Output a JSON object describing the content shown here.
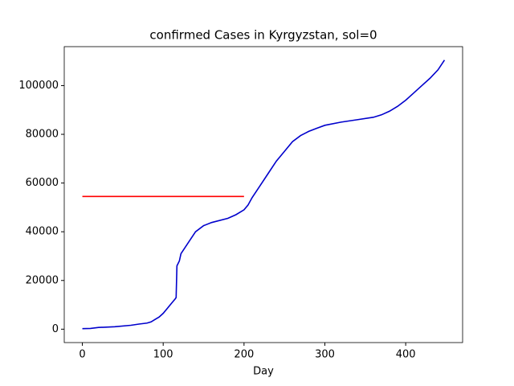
{
  "chart_data": {
    "type": "line",
    "title": "confirmed Cases in Kyrgyzstan, sol=0",
    "x_label": "Day",
    "series": [
      {
        "color": "#0000cc",
        "x": [
          0,
          10,
          20,
          40,
          60,
          70,
          80,
          85,
          90,
          95,
          100,
          105,
          110,
          115,
          116,
          117,
          120,
          122,
          130,
          140,
          150,
          160,
          180,
          190,
          200,
          205,
          210,
          220,
          230,
          240,
          250,
          260,
          270,
          280,
          290,
          300,
          320,
          340,
          360,
          370,
          380,
          390,
          400,
          410,
          420,
          430,
          440,
          448
        ],
        "values": [
          200,
          300,
          700,
          1000,
          1600,
          2100,
          2500,
          3000,
          4000,
          5000,
          6500,
          8500,
          10500,
          12500,
          13000,
          26000,
          28000,
          31000,
          35000,
          40000,
          42500,
          43800,
          45500,
          47000,
          49000,
          51000,
          54000,
          59000,
          64000,
          69000,
          73000,
          77000,
          79500,
          81200,
          82500,
          83700,
          85000,
          86000,
          87000,
          88000,
          89500,
          91500,
          94000,
          97000,
          100000,
          103000,
          106500,
          110500
        ]
      },
      {
        "color": "#ff0000",
        "x": [
          0,
          200
        ],
        "values": [
          54500,
          54500
        ]
      }
    ],
    "xlim": [
      -22.4,
      470.4
    ],
    "xticks": [
      0,
      100,
      200,
      300,
      400
    ],
    "ylim": [
      -5500,
      116000
    ],
    "yticks": [
      0,
      20000,
      40000,
      60000,
      80000,
      100000
    ]
  }
}
